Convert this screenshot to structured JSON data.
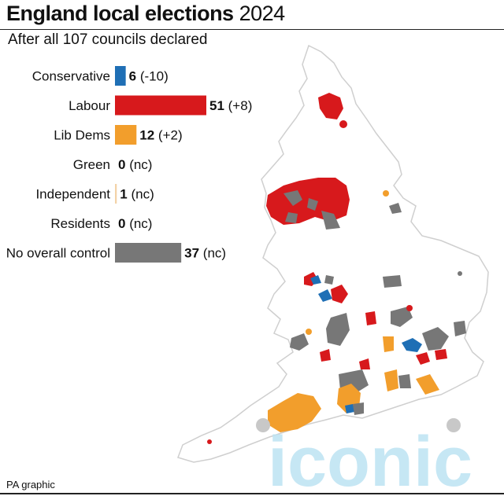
{
  "header": {
    "title_bold": "England local elections",
    "title_year": "2024",
    "subtitle": "After all 107 councils declared"
  },
  "footer": {
    "source": "PA graphic"
  },
  "watermark": {
    "text": "iconic",
    "color": "#bde3f3"
  },
  "colors": {
    "Conservative": "#1f6fb5",
    "Labour": "#d7191c",
    "Lib Dems": "#f29e2c",
    "Green": "#5cae45",
    "Independent": "#f3d3a8",
    "Residents": "#999999",
    "No overall control": "#777777",
    "land": "#ffffff",
    "coast": "#cfcfcf"
  },
  "chart_data": {
    "type": "bar",
    "orientation": "horizontal",
    "title": "England local elections 2024",
    "subtitle": "After all 107 councils declared",
    "categories": [
      "Conservative",
      "Labour",
      "Lib Dems",
      "Green",
      "Independent",
      "Residents",
      "No overall control"
    ],
    "values": [
      6,
      51,
      12,
      0,
      1,
      0,
      37
    ],
    "changes": [
      "(-10)",
      "(+8)",
      "(+2)",
      "(nc)",
      "(nc)",
      "(nc)",
      "(nc)"
    ],
    "xlim": [
      0,
      51
    ],
    "xlabel": "",
    "ylabel": "",
    "grid": false,
    "legend": "none"
  }
}
